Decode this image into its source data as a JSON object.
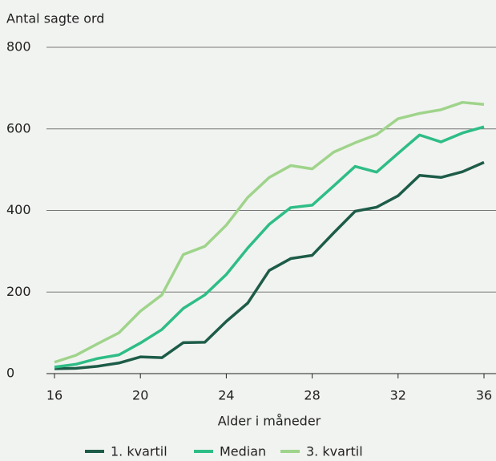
{
  "chart_data": {
    "type": "line",
    "y_label": "Antal sagte ord",
    "x_label": "Alder i måneder",
    "x": [
      16,
      17,
      18,
      19,
      20,
      21,
      22,
      23,
      24,
      25,
      26,
      27,
      28,
      29,
      30,
      31,
      32,
      33,
      34,
      35,
      36
    ],
    "series": [
      {
        "name": "1. kvartil",
        "color": "#1d5c48",
        "values": [
          12,
          13,
          18,
          26,
          41,
          39,
          76,
          77,
          128,
          173,
          253,
          282,
          290,
          345,
          398,
          408,
          436,
          486,
          481,
          495,
          518
        ]
      },
      {
        "name": "Median",
        "color": "#2ebd86",
        "values": [
          16,
          23,
          37,
          46,
          75,
          108,
          160,
          193,
          243,
          308,
          366,
          407,
          413,
          460,
          508,
          494,
          540,
          585,
          568,
          590,
          605
        ]
      },
      {
        "name": "3. kvartil",
        "color": "#9fd48b",
        "values": [
          28,
          45,
          73,
          100,
          153,
          193,
          292,
          312,
          364,
          432,
          481,
          510,
          502,
          543,
          566,
          586,
          625,
          638,
          647,
          665,
          660
        ]
      }
    ],
    "xlim": [
      16,
      36
    ],
    "xticks": [
      16,
      20,
      24,
      28,
      32,
      36
    ],
    "ylim": [
      0,
      800
    ],
    "yticks": [
      0,
      200,
      400,
      600,
      800
    ],
    "grid": true,
    "legend": "bottom"
  }
}
